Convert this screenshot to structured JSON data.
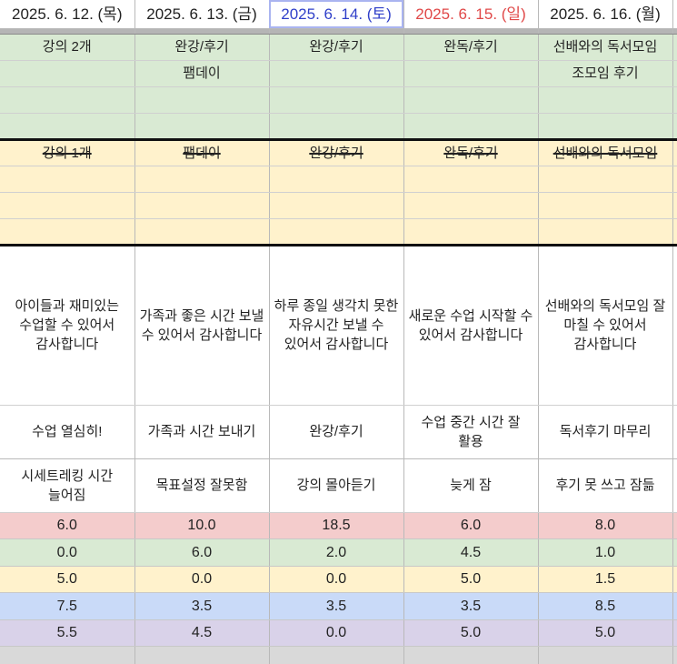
{
  "dates": [
    {
      "label": "2025. 6. 12. (목)",
      "kind": "weekday"
    },
    {
      "label": "2025. 6. 13. (금)",
      "kind": "weekday"
    },
    {
      "label": "2025. 6. 14. (토)",
      "kind": "sat"
    },
    {
      "label": "2025. 6. 15. (일)",
      "kind": "sun"
    },
    {
      "label": "2025. 6. 16. (월)",
      "kind": "weekday"
    }
  ],
  "colors": {
    "saturday": "#2f3fc9",
    "sunday": "#e04848",
    "green_band": "#d9ead3",
    "yellow_band": "#fff2cc",
    "red_band": "#f4cccc",
    "blue_band": "#c9daf8",
    "purple_band": "#d9d2e9"
  },
  "plans": [
    [
      "강의 2개",
      "완강/후기",
      "완강/후기",
      "완독/후기",
      "선배와의 독서모임"
    ],
    [
      "",
      "팸데이",
      "",
      "",
      "조모임 후기"
    ],
    [
      "",
      "",
      "",
      "",
      ""
    ],
    [
      "",
      "",
      "",
      "",
      ""
    ]
  ],
  "done": [
    [
      "강의 1개",
      "팸데이",
      "완강/후기",
      "완독/후기",
      "선배와의 독서모임"
    ],
    [
      "",
      "",
      "",
      "",
      ""
    ],
    [
      "",
      "",
      "",
      "",
      ""
    ],
    [
      "",
      "",
      "",
      "",
      ""
    ]
  ],
  "gratitude": [
    "아이들과 재미있는 수업할 수 있어서 감사합니다",
    "가족과 좋은 시간 보낼 수 있어서 감사합니다",
    "하루 종일 생각치 못한 자유시간 보낼 수 있어서 감사합니다",
    "새로운 수업 시작할 수 있어서 감사합니다",
    "선배와의 독서모임 잘 마칠 수 있어서 감사합니다"
  ],
  "good_points": [
    "수업 열심히!",
    "가족과 시간 보내기",
    "완강/후기",
    "수업 중간 시간 잘 활용",
    "독서후기 마무리"
  ],
  "bad_points": [
    "시세트레킹 시간 늘어짐",
    "목표설정 잘못함",
    "강의 몰아듣기",
    "늦게 잠",
    "후기 못 쓰고 잠듦"
  ],
  "hours": [
    [
      "6.0",
      "10.0",
      "18.5",
      "6.0",
      "8.0"
    ],
    [
      "0.0",
      "6.0",
      "2.0",
      "4.5",
      "1.0"
    ],
    [
      "5.0",
      "0.0",
      "0.0",
      "5.0",
      "1.5"
    ],
    [
      "7.5",
      "3.5",
      "3.5",
      "3.5",
      "8.5"
    ],
    [
      "5.5",
      "4.5",
      "0.0",
      "5.0",
      "5.0"
    ],
    [
      "",
      "",
      "",
      "",
      ""
    ]
  ]
}
